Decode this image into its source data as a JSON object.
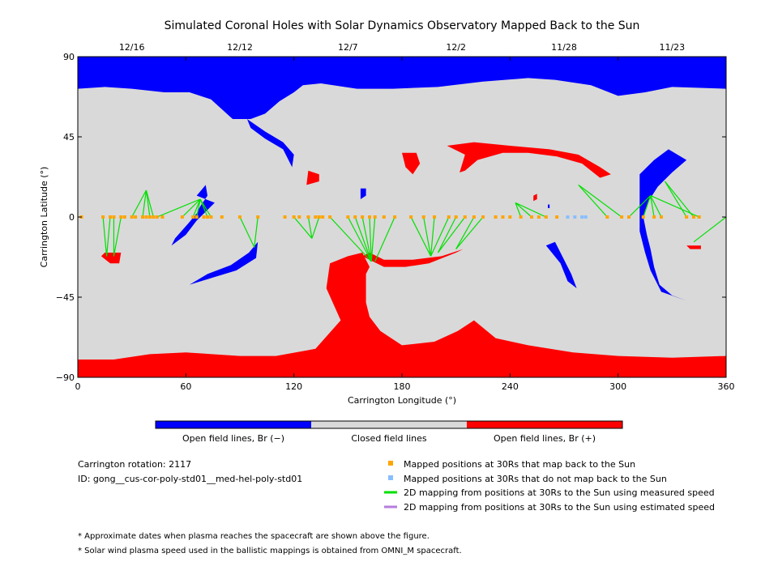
{
  "chart_data": {
    "type": "map",
    "title": "Simulated Coronal Holes with Solar Dynamics Observatory Mapped Back to the Sun",
    "xlabel": "Carrington Longitude (°)",
    "ylabel": "Carrington Latitude (°)",
    "xlim": [
      0,
      360
    ],
    "ylim": [
      -90,
      90
    ],
    "x_ticks": [
      "0",
      "60",
      "120",
      "180",
      "240",
      "300",
      "360"
    ],
    "y_ticks": [
      "90",
      "45",
      "0",
      "−45",
      "−90"
    ],
    "top_dates": [
      {
        "label": "12/16",
        "lon": 30
      },
      {
        "label": "12/12",
        "lon": 90
      },
      {
        "label": "12/7",
        "lon": 150
      },
      {
        "label": "12/2",
        "lon": 210
      },
      {
        "label": "11/28",
        "lon": 270
      },
      {
        "label": "11/23",
        "lon": 330
      }
    ],
    "colors": {
      "open_negative": "#0000ff",
      "closed": "#d9d9d9",
      "open_positive": "#ff0000",
      "mapped": "#ffa500",
      "not_mapped": "#87bfff",
      "measured_speed": "#00e000",
      "estimated_speed": "#b57edc"
    },
    "colorbar": [
      "Open field lines, Br (−)",
      "Closed field lines",
      "Open field lines, Br (+)"
    ],
    "regions": [
      {
        "polarity": "negative",
        "name": "north polar hole",
        "points": [
          [
            0,
            90
          ],
          [
            360,
            90
          ],
          [
            360,
            72
          ],
          [
            330,
            73
          ],
          [
            315,
            70
          ],
          [
            300,
            68
          ],
          [
            285,
            74
          ],
          [
            265,
            77
          ],
          [
            250,
            78
          ],
          [
            225,
            76
          ],
          [
            200,
            73
          ],
          [
            175,
            72
          ],
          [
            155,
            72
          ],
          [
            135,
            75
          ],
          [
            125,
            74
          ],
          [
            120,
            70
          ],
          [
            112,
            65
          ],
          [
            104,
            58
          ],
          [
            96,
            55
          ],
          [
            86,
            55
          ],
          [
            74,
            66
          ],
          [
            62,
            70
          ],
          [
            48,
            70
          ],
          [
            30,
            72
          ],
          [
            15,
            73
          ],
          [
            0,
            72
          ]
        ]
      },
      {
        "polarity": "negative",
        "name": "north extension",
        "points": [
          [
            94,
            55
          ],
          [
            104,
            48
          ],
          [
            114,
            42
          ],
          [
            120,
            35
          ],
          [
            119,
            28
          ],
          [
            114,
            38
          ],
          [
            104,
            44
          ],
          [
            96,
            50
          ]
        ]
      },
      {
        "polarity": "negative",
        "name": "right band",
        "points": [
          [
            312,
            24
          ],
          [
            320,
            32
          ],
          [
            328,
            38
          ],
          [
            338,
            32
          ],
          [
            330,
            25
          ],
          [
            322,
            17
          ],
          [
            317,
            9
          ],
          [
            314,
            0
          ],
          [
            316,
            -10
          ],
          [
            318,
            -18
          ],
          [
            320,
            -28
          ],
          [
            323,
            -38
          ],
          [
            330,
            -44
          ],
          [
            338,
            -47
          ],
          [
            324,
            -42
          ],
          [
            318,
            -30
          ],
          [
            315,
            -20
          ],
          [
            312,
            -8
          ],
          [
            312,
            6
          ]
        ]
      },
      {
        "polarity": "negative",
        "name": "mid-south patch",
        "points": [
          [
            62,
            -38
          ],
          [
            75,
            -34
          ],
          [
            88,
            -30
          ],
          [
            99,
            -23
          ],
          [
            100,
            -14
          ],
          [
            95,
            -20
          ],
          [
            85,
            -27
          ],
          [
            72,
            -32
          ]
        ]
      },
      {
        "polarity": "negative",
        "name": "small cluster",
        "points": [
          [
            66,
            12
          ],
          [
            71,
            18
          ],
          [
            72,
            12
          ],
          [
            68,
            6
          ],
          [
            66,
            2
          ],
          [
            61,
            -4
          ],
          [
            54,
            -12
          ],
          [
            52,
            -16
          ],
          [
            60,
            -10
          ],
          [
            66,
            -2
          ],
          [
            72,
            4
          ],
          [
            76,
            8
          ]
        ]
      },
      {
        "polarity": "negative",
        "name": "right patch",
        "points": [
          [
            260,
            -16
          ],
          [
            268,
            -26
          ],
          [
            272,
            -36
          ],
          [
            277,
            -40
          ],
          [
            274,
            -32
          ],
          [
            270,
            -24
          ],
          [
            265,
            -14
          ]
        ]
      },
      {
        "polarity": "negative",
        "name": "tiny 157",
        "points": [
          [
            157,
            10
          ],
          [
            160,
            12
          ],
          [
            160,
            16
          ],
          [
            157,
            16
          ]
        ]
      },
      {
        "polarity": "negative",
        "name": "small near 262",
        "points": [
          [
            261,
            5
          ],
          [
            262,
            5
          ],
          [
            262,
            7
          ],
          [
            261,
            7
          ]
        ]
      },
      {
        "polarity": "positive",
        "name": "south polar",
        "points": [
          [
            0,
            -90
          ],
          [
            360,
            -90
          ],
          [
            360,
            -78
          ],
          [
            330,
            -79
          ],
          [
            300,
            -78
          ],
          [
            275,
            -76
          ],
          [
            250,
            -72
          ],
          [
            232,
            -68
          ],
          [
            220,
            -58
          ],
          [
            211,
            -64
          ],
          [
            198,
            -70
          ],
          [
            180,
            -72
          ],
          [
            168,
            -64
          ],
          [
            162,
            -56
          ],
          [
            160,
            -48
          ],
          [
            160,
            -32
          ],
          [
            162,
            -28
          ],
          [
            158,
            -20
          ],
          [
            150,
            -22
          ],
          [
            140,
            -26
          ],
          [
            138,
            -40
          ],
          [
            146,
            -58
          ],
          [
            132,
            -74
          ],
          [
            110,
            -78
          ],
          [
            90,
            -78
          ],
          [
            60,
            -76
          ],
          [
            40,
            -77
          ],
          [
            20,
            -80
          ],
          [
            0,
            -80
          ]
        ]
      },
      {
        "polarity": "positive",
        "name": "southern arch",
        "points": [
          [
            158,
            -22
          ],
          [
            170,
            -28
          ],
          [
            182,
            -28
          ],
          [
            195,
            -26
          ],
          [
            210,
            -20
          ],
          [
            214,
            -18
          ],
          [
            202,
            -22
          ],
          [
            186,
            -24
          ],
          [
            170,
            -24
          ],
          [
            162,
            -20
          ]
        ]
      },
      {
        "polarity": "positive",
        "name": "north arc",
        "points": [
          [
            205,
            40
          ],
          [
            220,
            42
          ],
          [
            240,
            40
          ],
          [
            262,
            38
          ],
          [
            278,
            35
          ],
          [
            290,
            28
          ],
          [
            296,
            24
          ],
          [
            290,
            22
          ],
          [
            280,
            30
          ],
          [
            266,
            34
          ],
          [
            250,
            36
          ],
          [
            236,
            36
          ],
          [
            222,
            32
          ],
          [
            215,
            26
          ],
          [
            212,
            25
          ],
          [
            215,
            35
          ]
        ]
      },
      {
        "polarity": "positive",
        "name": "blob 184",
        "points": [
          [
            180,
            36
          ],
          [
            188,
            36
          ],
          [
            190,
            30
          ],
          [
            186,
            24
          ],
          [
            182,
            28
          ]
        ]
      },
      {
        "polarity": "positive",
        "name": "small 133",
        "points": [
          [
            128,
            26
          ],
          [
            134,
            24
          ],
          [
            134,
            20
          ],
          [
            127,
            18
          ]
        ]
      },
      {
        "polarity": "positive",
        "name": "blob 20",
        "points": [
          [
            13,
            -22
          ],
          [
            18,
            -26
          ],
          [
            23,
            -26
          ],
          [
            24,
            -20
          ],
          [
            19,
            -20
          ],
          [
            15,
            -20
          ]
        ]
      },
      {
        "polarity": "positive",
        "name": "tiny 339",
        "points": [
          [
            338,
            -16
          ],
          [
            346,
            -16
          ],
          [
            346,
            -18
          ],
          [
            340,
            -18
          ]
        ]
      },
      {
        "polarity": "positive",
        "name": "tiny 260",
        "points": [
          [
            253,
            9
          ],
          [
            255,
            10
          ],
          [
            255,
            13
          ],
          [
            253,
            12
          ]
        ]
      }
    ],
    "mapped_points_lon": [
      2,
      14,
      18,
      20,
      24,
      26,
      30,
      32,
      36,
      38,
      40,
      42,
      44,
      47,
      58,
      64,
      66,
      70,
      72,
      74,
      80,
      90,
      100,
      115,
      120,
      123,
      128,
      132,
      134,
      136,
      140,
      150,
      154,
      158,
      162,
      165,
      170,
      176,
      185,
      192,
      198,
      206,
      210,
      215,
      220,
      225,
      232,
      236,
      240,
      246,
      252,
      256,
      260,
      266,
      294,
      302,
      306,
      314,
      320,
      324,
      338,
      342,
      345
    ],
    "not_mapped_points_lon": [
      272,
      276,
      280,
      282
    ],
    "mapping_lines_measured": [
      [
        [
          14,
          0
        ],
        [
          16,
          -22
        ]
      ],
      [
        [
          18,
          0
        ],
        [
          16,
          -22
        ]
      ],
      [
        [
          20,
          0
        ],
        [
          20,
          -22
        ]
      ],
      [
        [
          24,
          0
        ],
        [
          20,
          -22
        ]
      ],
      [
        [
          30,
          0
        ],
        [
          38,
          15
        ]
      ],
      [
        [
          36,
          0
        ],
        [
          38,
          15
        ]
      ],
      [
        [
          40,
          0
        ],
        [
          38,
          15
        ]
      ],
      [
        [
          42,
          0
        ],
        [
          38,
          15
        ]
      ],
      [
        [
          44,
          0
        ],
        [
          68,
          10
        ]
      ],
      [
        [
          58,
          0
        ],
        [
          68,
          10
        ]
      ],
      [
        [
          64,
          0
        ],
        [
          68,
          10
        ]
      ],
      [
        [
          66,
          0
        ],
        [
          68,
          10
        ]
      ],
      [
        [
          72,
          0
        ],
        [
          68,
          10
        ]
      ],
      [
        [
          74,
          0
        ],
        [
          68,
          10
        ]
      ],
      [
        [
          90,
          0
        ],
        [
          98,
          -17
        ]
      ],
      [
        [
          100,
          0
        ],
        [
          98,
          -17
        ]
      ],
      [
        [
          120,
          0
        ],
        [
          130,
          -12
        ]
      ],
      [
        [
          128,
          0
        ],
        [
          130,
          -12
        ]
      ],
      [
        [
          134,
          0
        ],
        [
          130,
          -12
        ]
      ],
      [
        [
          140,
          0
        ],
        [
          163,
          -25
        ]
      ],
      [
        [
          150,
          0
        ],
        [
          163,
          -25
        ]
      ],
      [
        [
          154,
          0
        ],
        [
          163,
          -25
        ]
      ],
      [
        [
          158,
          0
        ],
        [
          163,
          -25
        ]
      ],
      [
        [
          162,
          0
        ],
        [
          163,
          -25
        ]
      ],
      [
        [
          165,
          0
        ],
        [
          163,
          -25
        ]
      ],
      [
        [
          176,
          0
        ],
        [
          165,
          -25
        ]
      ],
      [
        [
          185,
          0
        ],
        [
          196,
          -22
        ]
      ],
      [
        [
          192,
          0
        ],
        [
          196,
          -22
        ]
      ],
      [
        [
          198,
          0
        ],
        [
          196,
          -22
        ]
      ],
      [
        [
          206,
          0
        ],
        [
          196,
          -22
        ]
      ],
      [
        [
          210,
          0
        ],
        [
          200,
          -20
        ]
      ],
      [
        [
          215,
          0
        ],
        [
          200,
          -20
        ]
      ],
      [
        [
          220,
          0
        ],
        [
          210,
          -18
        ]
      ],
      [
        [
          225,
          0
        ],
        [
          210,
          -18
        ]
      ],
      [
        [
          246,
          0
        ],
        [
          243,
          8
        ]
      ],
      [
        [
          252,
          0
        ],
        [
          243,
          8
        ]
      ],
      [
        [
          260,
          0
        ],
        [
          243,
          8
        ]
      ],
      [
        [
          294,
          0
        ],
        [
          278,
          18
        ]
      ],
      [
        [
          302,
          0
        ],
        [
          278,
          18
        ]
      ],
      [
        [
          306,
          0
        ],
        [
          318,
          12
        ]
      ],
      [
        [
          314,
          0
        ],
        [
          318,
          12
        ]
      ],
      [
        [
          320,
          0
        ],
        [
          318,
          12
        ]
      ],
      [
        [
          324,
          0
        ],
        [
          318,
          12
        ]
      ],
      [
        [
          338,
          0
        ],
        [
          326,
          20
        ]
      ],
      [
        [
          342,
          0
        ],
        [
          326,
          20
        ]
      ],
      [
        [
          345,
          0
        ],
        [
          318,
          12
        ]
      ],
      [
        [
          360,
          0
        ],
        [
          342,
          -14
        ]
      ]
    ]
  },
  "legend": {
    "carrington": "Carrington rotation: 2117",
    "id": "ID: gong__cus-cor-poly-std01__med-hel-poly-std01",
    "items": [
      "Mapped positions at 30Rs that map back to the Sun",
      "Mapped positions at 30Rs that do not map back to the Sun",
      "2D mapping from positions at 30Rs to the Sun using measured speed",
      "2D mapping from positions at 30Rs to the Sun using estimated speed"
    ]
  },
  "notes": [
    "* Approximate dates when plasma reaches the spacecraft are shown above the figure.",
    "* Solar wind plasma speed used in the ballistic mappings is obtained from OMNI_M spacecraft."
  ]
}
